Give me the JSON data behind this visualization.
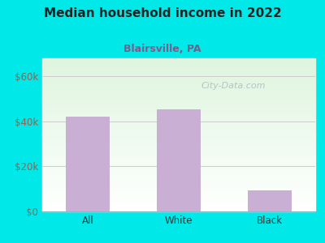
{
  "title": "Median household income in 2022",
  "subtitle": "Blairsville, PA",
  "categories": [
    "All",
    "White",
    "Black"
  ],
  "values": [
    42000,
    45500,
    9500
  ],
  "bar_color": "#c9afd4",
  "title_fontsize": 11,
  "subtitle_fontsize": 9,
  "subtitle_color": "#7a5c8a",
  "title_color": "#222222",
  "background_color": "#00e8e8",
  "yticks": [
    0,
    20000,
    40000,
    60000
  ],
  "ytick_labels": [
    "$0",
    "$20k",
    "$40k",
    "$60k"
  ],
  "ylim": [
    0,
    68000
  ],
  "watermark": "City-Data.com",
  "watermark_color": "#b0b8c0",
  "tick_color": "#886655",
  "xlabel_color": "#333333"
}
